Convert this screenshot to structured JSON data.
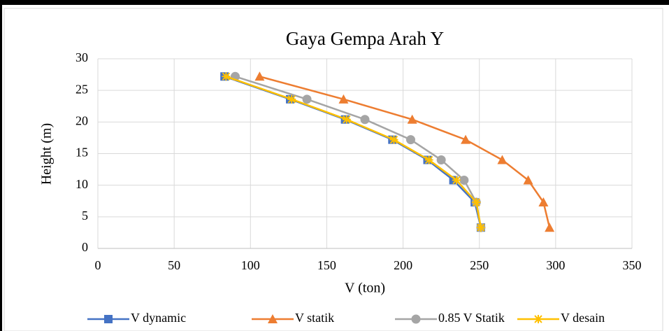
{
  "chart_data": {
    "type": "line",
    "title": "Gaya Gempa Arah Y",
    "x_label": "V (ton)",
    "y_label": "Height (m)",
    "xlim": [
      0,
      350
    ],
    "xticks": [
      0,
      50,
      100,
      150,
      200,
      250,
      300,
      350
    ],
    "ylim": [
      0,
      30
    ],
    "yticks": [
      0,
      5,
      10,
      15,
      20,
      25,
      30
    ],
    "grid": true,
    "legend": "bottom",
    "series": [
      {
        "name": "V dynamic",
        "color": "#4472c4",
        "marker": "square",
        "x": [
          83,
          126,
          162,
          193,
          216,
          233,
          247,
          251
        ],
        "values": [
          27.2,
          23.6,
          20.4,
          17.2,
          14.0,
          10.8,
          7.3,
          3.3
        ]
      },
      {
        "name": "V statik",
        "color": "#ed7d31",
        "marker": "triangle",
        "x": [
          106,
          161,
          206,
          241,
          265,
          282,
          292,
          296
        ],
        "values": [
          27.2,
          23.6,
          20.4,
          17.2,
          14.0,
          10.8,
          7.3,
          3.3
        ]
      },
      {
        "name": "0.85 V Statik",
        "color": "#a5a5a5",
        "marker": "circle",
        "x": [
          90,
          137,
          175,
          205,
          225,
          240,
          248,
          251
        ],
        "values": [
          27.2,
          23.6,
          20.4,
          17.2,
          14.0,
          10.8,
          7.3,
          3.3
        ]
      },
      {
        "name": "V desain",
        "color": "#ffc000",
        "marker": "star",
        "x": [
          84,
          127,
          163,
          194,
          217,
          235,
          248,
          251
        ],
        "values": [
          27.2,
          23.6,
          20.4,
          17.2,
          14.0,
          10.8,
          7.3,
          3.3
        ]
      }
    ]
  }
}
